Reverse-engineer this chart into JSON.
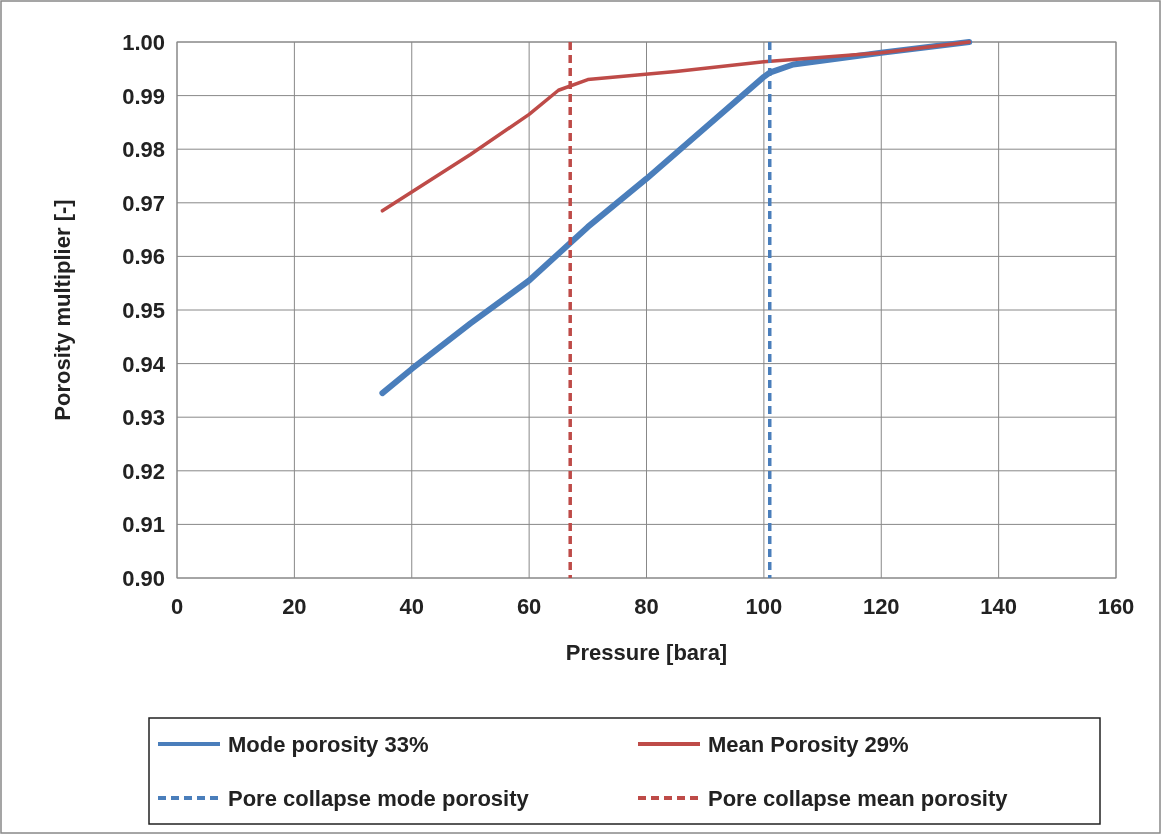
{
  "chart_data": {
    "type": "line",
    "xlabel": "Pressure [bara]",
    "ylabel": "Porosity multiplier [-]",
    "xlim": [
      0,
      160
    ],
    "xticks": [
      0,
      20,
      40,
      60,
      80,
      100,
      120,
      140,
      160
    ],
    "ylim": [
      0.9,
      1.0
    ],
    "yticks": [
      {
        "value": 0.9,
        "label": "0.90"
      },
      {
        "value": 0.91,
        "label": "0.91"
      },
      {
        "value": 0.92,
        "label": "0.92"
      },
      {
        "value": 0.93,
        "label": "0.93"
      },
      {
        "value": 0.94,
        "label": "0.94"
      },
      {
        "value": 0.95,
        "label": "0.95"
      },
      {
        "value": 0.96,
        "label": "0.96"
      },
      {
        "value": 0.97,
        "label": "0.97"
      },
      {
        "value": 0.98,
        "label": "0.98"
      },
      {
        "value": 0.99,
        "label": "0.99"
      },
      {
        "value": 1.0,
        "label": "1.00"
      }
    ],
    "grid": true,
    "legend": "bottom",
    "line_style": "solid",
    "marker": "none",
    "series": [
      {
        "name": "Mode porosity 33%",
        "color": "#4a7ebb",
        "x": [
          35,
          40,
          50,
          60,
          70,
          80,
          90,
          100,
          101,
          105,
          120,
          135
        ],
        "values": [
          0.9345,
          0.939,
          0.9475,
          0.9555,
          0.9655,
          0.9745,
          0.984,
          0.9935,
          0.9943,
          0.9958,
          0.998,
          1.0
        ]
      },
      {
        "name": "Mean Porosity 29%",
        "color": "#be4b48",
        "x": [
          35,
          40,
          50,
          60,
          65,
          70,
          85,
          100,
          120,
          135
        ],
        "values": [
          0.9685,
          0.972,
          0.979,
          0.9865,
          0.991,
          0.993,
          0.9945,
          0.9963,
          0.998,
          1.0
        ]
      }
    ],
    "ref_lines": [
      {
        "axis": "x",
        "value": 101,
        "label": "Pore collapse mode porosity",
        "color": "#4a7ebb",
        "line_style": "dashed"
      },
      {
        "axis": "x",
        "value": 67,
        "label": "Pore collapse mean porosity",
        "color": "#be4b48",
        "line_style": "dashed"
      }
    ]
  }
}
